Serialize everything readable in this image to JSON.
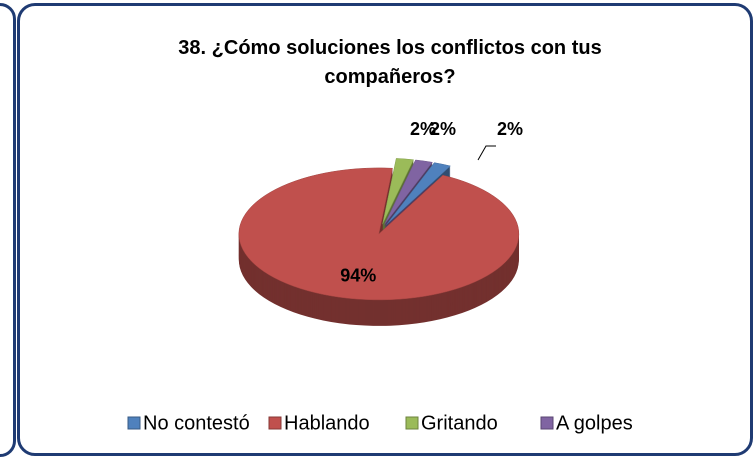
{
  "chart_data": {
    "type": "pie",
    "title": "38. ¿Cómo soluciones los conflictos con tus compañeros?",
    "categories": [
      "No contestó",
      "Hablando",
      "Gritando",
      "A golpes"
    ],
    "values": [
      2,
      94,
      2,
      2
    ],
    "value_labels": [
      "2%",
      "94%",
      "2%",
      "2%"
    ],
    "colors": [
      "#4f81bd",
      "#c0504d",
      "#9bbb59",
      "#8064a2"
    ],
    "legend": "bottom"
  }
}
